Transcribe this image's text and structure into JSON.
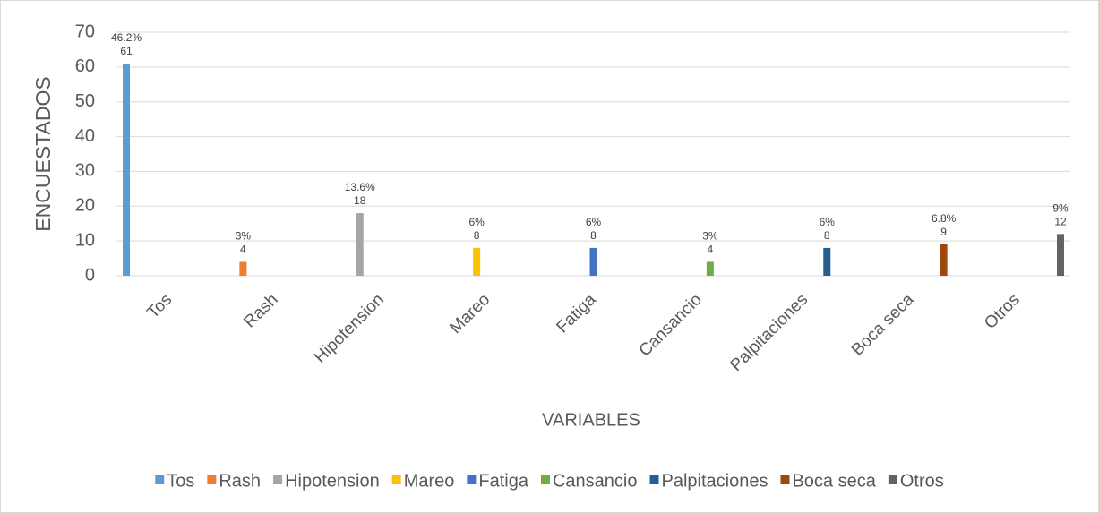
{
  "chart_data": {
    "type": "bar",
    "x_label": "VARIABLES",
    "y_label": "ENCUESTADOS",
    "categories": [
      "Tos",
      "Rash",
      "Hipotension",
      "Mareo",
      "Fatiga",
      "Cansancio",
      "Palpitaciones",
      "Boca seca",
      "Otros"
    ],
    "series": [
      {
        "name": "Tos",
        "color": "#5b9bd5",
        "values": [
          61,
          null,
          null,
          null,
          null,
          null,
          null,
          null,
          null
        ]
      },
      {
        "name": "Rash",
        "color": "#ed7d31",
        "values": [
          null,
          4,
          null,
          null,
          null,
          null,
          null,
          null,
          null
        ]
      },
      {
        "name": "Hipotension",
        "color": "#a5a5a5",
        "values": [
          null,
          null,
          18,
          null,
          null,
          null,
          null,
          null,
          null
        ]
      },
      {
        "name": "Mareo",
        "color": "#ffc000",
        "values": [
          null,
          null,
          null,
          8,
          null,
          null,
          null,
          null,
          null
        ]
      },
      {
        "name": "Fatiga",
        "color": "#4472c4",
        "values": [
          null,
          null,
          null,
          null,
          8,
          null,
          null,
          null,
          null
        ]
      },
      {
        "name": "Cansancio",
        "color": "#70ad47",
        "values": [
          null,
          null,
          null,
          null,
          null,
          4,
          null,
          null,
          null
        ]
      },
      {
        "name": "Palpitaciones",
        "color": "#255e91",
        "values": [
          null,
          null,
          null,
          null,
          null,
          null,
          8,
          null,
          null
        ]
      },
      {
        "name": "Boca seca",
        "color": "#9e480e",
        "values": [
          null,
          null,
          null,
          null,
          null,
          null,
          null,
          9,
          null
        ]
      },
      {
        "name": "Otros",
        "color": "#636363",
        "values": [
          null,
          null,
          null,
          null,
          null,
          null,
          null,
          null,
          12
        ]
      }
    ],
    "percent_labels": [
      "46.2%",
      "3%",
      "13.6%",
      "6%",
      "6%",
      "3%",
      "6%",
      "6.8%",
      "9%"
    ],
    "ylim": [
      0,
      70
    ],
    "yticks": [
      0,
      10,
      20,
      30,
      40,
      50,
      60,
      70
    ],
    "grid": true,
    "legend": "bottom"
  }
}
